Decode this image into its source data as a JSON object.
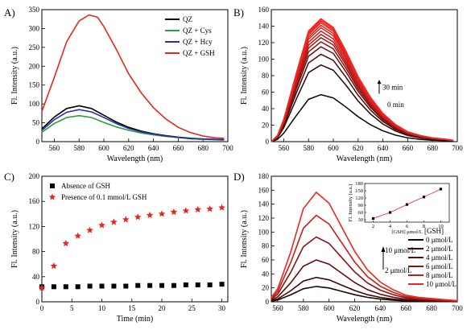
{
  "chart_data": [
    {
      "panel": "A)",
      "type": "line",
      "xlabel": "Wavelength (nm)",
      "ylabel": "Fl. Intensity (a.u.)",
      "xlim": [
        550,
        700
      ],
      "ylim": [
        0,
        350
      ],
      "xticks": [
        560,
        580,
        600,
        620,
        640,
        660,
        680,
        700
      ],
      "yticks": [
        0,
        50,
        100,
        150,
        200,
        250,
        300,
        350
      ],
      "legend": "top-right",
      "series": [
        {
          "name": "QZ",
          "color": "#000000",
          "x": [
            550,
            560,
            570,
            580,
            590,
            600,
            610,
            620,
            630,
            640,
            650,
            660,
            670,
            680,
            690,
            697
          ],
          "y": [
            34,
            65,
            88,
            95,
            88,
            70,
            52,
            38,
            28,
            21,
            16,
            12,
            9,
            7,
            6,
            5
          ]
        },
        {
          "name": "QZ + Cys",
          "color": "#2e9e3c",
          "x": [
            550,
            560,
            570,
            580,
            590,
            600,
            610,
            620,
            630,
            640,
            650,
            660,
            670,
            680,
            690,
            697
          ],
          "y": [
            25,
            48,
            64,
            69,
            64,
            51,
            39,
            30,
            23,
            18,
            14,
            11,
            8,
            6,
            5,
            4
          ]
        },
        {
          "name": "QZ + Hcy",
          "color": "#2b2fa8",
          "x": [
            550,
            560,
            570,
            580,
            590,
            600,
            610,
            620,
            630,
            640,
            650,
            660,
            670,
            680,
            690,
            697
          ],
          "y": [
            30,
            58,
            78,
            85,
            79,
            64,
            48,
            35,
            26,
            20,
            15,
            11,
            8,
            7,
            6,
            5
          ]
        },
        {
          "name": "QZ + GSH",
          "color": "#e8261c",
          "x": [
            550,
            560,
            570,
            580,
            588,
            595,
            600,
            610,
            620,
            630,
            640,
            650,
            660,
            670,
            680,
            690,
            697
          ],
          "y": [
            80,
            170,
            265,
            320,
            336,
            330,
            305,
            245,
            180,
            130,
            90,
            60,
            38,
            24,
            15,
            10,
            9
          ]
        }
      ]
    },
    {
      "panel": "B)",
      "type": "line",
      "xlabel": "Wavelength (nm)",
      "ylabel": "Fl. Intensity (a.u.)",
      "xlim": [
        550,
        700
      ],
      "ylim": [
        0,
        160
      ],
      "xticks": [
        560,
        580,
        600,
        620,
        640,
        660,
        680,
        700
      ],
      "yticks": [
        0,
        20,
        40,
        60,
        80,
        100,
        120,
        140,
        160
      ],
      "annotations": [
        "30 min",
        "0 min"
      ],
      "shape_x": [
        550,
        555,
        560,
        570,
        580,
        590,
        600,
        610,
        620,
        630,
        640,
        650,
        660,
        670,
        680,
        690,
        697
      ],
      "shape_rel": [
        0.0,
        0.05,
        0.18,
        0.55,
        0.9,
        1.0,
        0.93,
        0.74,
        0.53,
        0.36,
        0.23,
        0.14,
        0.08,
        0.05,
        0.03,
        0.02,
        0.01
      ],
      "series": [
        {
          "name": "0 min",
          "peak": 57,
          "color": "#000000"
        },
        {
          "peak": 93,
          "color": "#2a0605"
        },
        {
          "peak": 106,
          "color": "#4a0b09"
        },
        {
          "peak": 115,
          "color": "#6b100d"
        },
        {
          "peak": 121,
          "color": "#8a1411"
        },
        {
          "peak": 126,
          "color": "#a31915"
        },
        {
          "peak": 130,
          "color": "#b81c18"
        },
        {
          "peak": 134,
          "color": "#c91f1a"
        },
        {
          "peak": 138,
          "color": "#d6211c"
        },
        {
          "peak": 141,
          "color": "#e0231d"
        },
        {
          "peak": 144,
          "color": "#e8241e"
        },
        {
          "peak": 146,
          "color": "#ee251f"
        },
        {
          "peak": 148,
          "color": "#f2261f"
        },
        {
          "name": "30 min",
          "peak": 149,
          "color": "#f52720"
        }
      ]
    },
    {
      "panel": "C)",
      "type": "scatter",
      "xlabel": "Time (min)",
      "ylabel": "Fl. Intensity (a.u.)",
      "xlim": [
        0,
        31
      ],
      "ylim": [
        0,
        200
      ],
      "xticks": [
        0,
        5,
        10,
        15,
        20,
        25,
        30
      ],
      "yticks": [
        0,
        40,
        80,
        120,
        160,
        200
      ],
      "legend": "top-left",
      "series": [
        {
          "name": "Absence of GSH",
          "marker": "square",
          "color": "#000000",
          "x": [
            0,
            2,
            4,
            6,
            8,
            10,
            12,
            14,
            16,
            18,
            20,
            22,
            24,
            26,
            28,
            30
          ],
          "y": [
            24,
            24,
            24,
            24,
            25,
            25,
            25,
            25,
            26,
            26,
            26,
            26,
            27,
            27,
            27,
            28
          ]
        },
        {
          "name": "Presence of 0.1 mmol/L GSH",
          "marker": "star",
          "color": "#e8261c",
          "x": [
            0,
            2,
            4,
            6,
            8,
            10,
            12,
            14,
            16,
            18,
            20,
            22,
            24,
            26,
            28,
            30
          ],
          "y": [
            22,
            57,
            93,
            105,
            114,
            122,
            127,
            131,
            135,
            138,
            140,
            143,
            145,
            147,
            148,
            150
          ]
        }
      ]
    },
    {
      "panel": "D)",
      "type": "line",
      "xlabel": "Wavelength (nm)",
      "ylabel": "Fl. Intensity (a.u.)",
      "xlim": [
        555,
        700
      ],
      "ylim": [
        0,
        180
      ],
      "xticks": [
        560,
        580,
        600,
        620,
        640,
        660,
        680,
        700
      ],
      "yticks": [
        0,
        20,
        40,
        60,
        80,
        100,
        120,
        140,
        160,
        180
      ],
      "legend_title": "[GSH]",
      "legend": "right",
      "annotations": [
        "10 μmol/L",
        "2 μmol/L"
      ],
      "shape_x": [
        555,
        560,
        570,
        580,
        590,
        600,
        610,
        620,
        630,
        640,
        650,
        660,
        670,
        680,
        690,
        700
      ],
      "shape_rel": [
        0.04,
        0.12,
        0.45,
        0.85,
        1.0,
        0.9,
        0.68,
        0.46,
        0.29,
        0.18,
        0.11,
        0.06,
        0.04,
        0.03,
        0.02,
        0.01
      ],
      "series": [
        {
          "name": "0 μmol/L",
          "peak": 22,
          "color": "#1a0505"
        },
        {
          "name": "2 μmol/L",
          "peak": 35,
          "color": "#3a0a08"
        },
        {
          "name": "4 μmol/L",
          "peak": 60,
          "color": "#5e0e0b"
        },
        {
          "name": "6 μmol/L",
          "peak": 93,
          "color": "#8a1411"
        },
        {
          "name": "8 μmol/L",
          "peak": 124,
          "color": "#c41e19"
        },
        {
          "name": "10 μmol/L",
          "peak": 157,
          "color": "#ef261f"
        }
      ],
      "inset": {
        "type": "scatter+line",
        "xlabel": "[GSH] μmol/L",
        "ylabel": "Fl. Intensity (a.u.)",
        "xlim": [
          1,
          11
        ],
        "ylim": [
          20,
          180
        ],
        "xticks": [
          2,
          4,
          6,
          8,
          10
        ],
        "yticks": [
          30,
          60,
          90,
          120,
          150,
          180
        ],
        "x": [
          2,
          4,
          6,
          8,
          10
        ],
        "y": [
          35,
          60,
          93,
          124,
          157
        ],
        "color": "#000000",
        "line_color": "#e8261c"
      }
    }
  ]
}
